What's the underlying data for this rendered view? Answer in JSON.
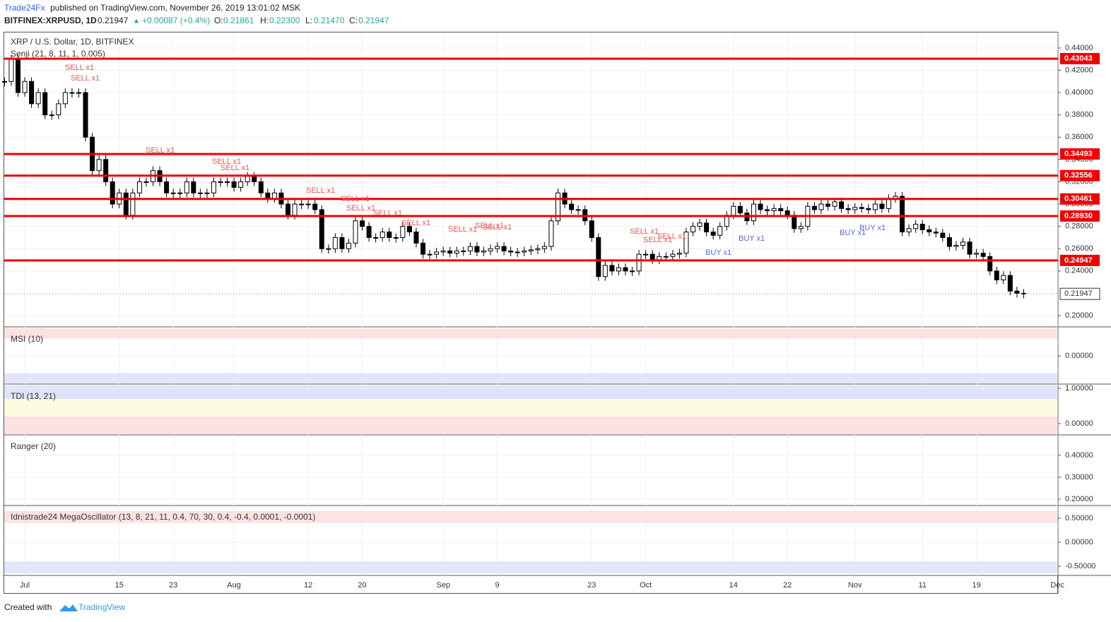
{
  "header": {
    "publisher": "Trade24Fx",
    "published": "published on TradingView.com, November 26, 2019 13:01:02 MSK",
    "symbol": "BITFINEX:XRPUSD, 1D",
    "last": "0.21947",
    "arrow": "▲",
    "change": "+0.00087 (+0.4%)",
    "open_label": "O:",
    "open": "0.21861",
    "high_label": "H:",
    "high": "0.22300",
    "low_label": "L:",
    "low": "0.21470",
    "close_label": "C:",
    "close": "0.21947"
  },
  "chart_data": {
    "type": "candlestick",
    "title": "XRP / U.S. Dollar, 1D, BITFINEX",
    "indicator": "Senji (21, 8, 11, 1, 0.005)",
    "categories": [
      null,
      null,
      null,
      "Jul",
      null,
      null,
      null,
      null,
      null,
      null,
      null,
      null,
      null,
      null,
      null,
      null,
      null,
      "15",
      null,
      null,
      null,
      null,
      null,
      null,
      null,
      "23",
      null,
      null,
      null,
      null,
      null,
      null,
      null,
      null,
      "Aug",
      null,
      null,
      null,
      null,
      null,
      null,
      null,
      null,
      null,
      null,
      "12",
      null,
      null,
      null,
      null,
      null,
      null,
      null,
      "20",
      null,
      null,
      null,
      null,
      null,
      null,
      null,
      null,
      null,
      null,
      null,
      "Sep",
      null,
      null,
      null,
      null,
      null,
      null,
      null,
      "9",
      null,
      null,
      null,
      null,
      null,
      null,
      null,
      null,
      null,
      null,
      null,
      null,
      null,
      "23",
      null,
      null,
      null,
      null,
      null,
      null,
      null,
      "Oct",
      null,
      null,
      null,
      null,
      null,
      null,
      null,
      null,
      null,
      null,
      null,
      null,
      "14",
      null,
      null,
      null,
      null,
      null,
      null,
      null,
      "22",
      null,
      null,
      null,
      null,
      null,
      null,
      null,
      null,
      null,
      "Nov",
      null,
      null,
      null,
      null,
      null,
      null,
      null,
      null,
      null,
      "11",
      null,
      null,
      null,
      null,
      null,
      null,
      null,
      "19",
      null,
      null,
      null,
      null,
      null,
      null,
      null,
      null,
      null,
      null,
      null,
      "Dec"
    ],
    "close": [
      0.41,
      0.43,
      0.4,
      0.41,
      0.39,
      0.4,
      0.38,
      0.38,
      0.39,
      0.4,
      0.4,
      0.4,
      0.36,
      0.33,
      0.34,
      0.32,
      0.3,
      0.31,
      0.29,
      0.31,
      0.32,
      0.32,
      0.33,
      0.32,
      0.31,
      0.31,
      0.31,
      0.32,
      0.31,
      0.31,
      0.31,
      0.32,
      0.32,
      0.32,
      0.315,
      0.32,
      0.325,
      0.32,
      0.31,
      0.305,
      0.31,
      0.3,
      0.29,
      0.3,
      0.3,
      0.3,
      0.295,
      0.26,
      0.26,
      0.27,
      0.26,
      0.265,
      0.285,
      0.28,
      0.27,
      0.27,
      0.275,
      0.27,
      0.27,
      0.28,
      0.275,
      0.265,
      0.255,
      0.255,
      0.257,
      0.258,
      0.256,
      0.258,
      0.258,
      0.262,
      0.257,
      0.258,
      0.26,
      0.262,
      0.258,
      0.257,
      0.257,
      0.258,
      0.259,
      0.26,
      0.262,
      0.285,
      0.31,
      0.3,
      0.295,
      0.295,
      0.285,
      0.27,
      0.235,
      0.245,
      0.24,
      0.243,
      0.24,
      0.24,
      0.255,
      0.255,
      0.25,
      0.253,
      0.253,
      0.255,
      0.256,
      0.275,
      0.28,
      0.283,
      0.275,
      0.272,
      0.28,
      0.29,
      0.298,
      0.292,
      0.285,
      0.3,
      0.295,
      0.294,
      0.296,
      0.294,
      0.29,
      0.278,
      0.28,
      0.298,
      0.295,
      0.3,
      0.298,
      0.302,
      0.296,
      0.295,
      0.297,
      0.296,
      0.295,
      0.3,
      0.296,
      0.305,
      0.307,
      0.275,
      0.278,
      0.282,
      0.277,
      0.275,
      0.274,
      0.27,
      0.262,
      0.263,
      0.266,
      0.255,
      0.256,
      0.253,
      0.24,
      0.232,
      0.236,
      0.222,
      0.22,
      0.21947,
      null,
      null,
      null,
      null,
      null
    ],
    "ylim": [
      0.1905,
      0.4539
    ],
    "yticks": [
      {
        "value": 0.44,
        "label": "0.44000"
      },
      {
        "value": 0.42,
        "label": "0.42000"
      },
      {
        "value": 0.4,
        "label": "0.40000"
      },
      {
        "value": 0.38,
        "label": "0.38000"
      },
      {
        "value": 0.36,
        "label": "0.36000"
      },
      {
        "value": 0.34,
        "label": "0.34000"
      },
      {
        "value": 0.32,
        "label": "0.32000"
      },
      {
        "value": 0.3,
        "label": "0.30000"
      },
      {
        "value": 0.28,
        "label": "0.28000"
      },
      {
        "value": 0.26,
        "label": "0.26000"
      },
      {
        "value": 0.24,
        "label": "0.24000"
      },
      {
        "value": 0.2,
        "label": "0.20000"
      }
    ],
    "levels": [
      {
        "value": 0.43043,
        "label": "0.43043"
      },
      {
        "value": 0.34493,
        "label": "0.34493"
      },
      {
        "value": 0.32556,
        "label": "0.32556"
      },
      {
        "value": 0.30461,
        "label": "0.30461"
      },
      {
        "value": 0.2893,
        "label": "0.28930"
      },
      {
        "value": 0.24947,
        "label": "0.24947"
      }
    ],
    "last_price": {
      "value": 0.21947,
      "label": "0.21947"
    },
    "level_color": "#f00000",
    "up_color": "#ffffff",
    "down_color": "#000000",
    "grid": true,
    "annotations": [
      "SELL x1",
      "SELL x1",
      "SELL x1",
      "SELL x1",
      "SELL x1",
      "SELL x1",
      "SELL x1",
      "SELL x1",
      "SELL x1",
      "SELL x1",
      "SELL x1",
      "SELL x1",
      "SELL x1",
      "SELL x1",
      "SELL x1",
      "SELL x1",
      "BUY x1",
      "BUY x1",
      "BUY x1",
      "BUY x1"
    ]
  },
  "panels": [
    {
      "title": "MSI (10)",
      "ylim": [
        -1.2,
        1.2
      ],
      "yticks": [
        {
          "value": 0,
          "label": "0.00000"
        }
      ]
    },
    {
      "title": "TDI (13, 21)",
      "ylim": [
        -0.3,
        1.08
      ],
      "yticks": [
        {
          "value": 1,
          "label": "1.00000"
        },
        {
          "value": 0,
          "label": "0.00000"
        }
      ]
    },
    {
      "title": "Ranger (20)",
      "ylim": [
        0.174,
        0.49
      ],
      "yticks": [
        {
          "value": 0.4,
          "label": "0.40000"
        },
        {
          "value": 0.3,
          "label": "0.30000"
        },
        {
          "value": 0.2,
          "label": "0.20000"
        }
      ]
    },
    {
      "title": "Idnistrade24 MegaOscillator (13, 8, 21, 11, 0.4, 70, 30, 0.4, -0.4, 0.0001, -0.0001)",
      "ylim": [
        -0.69,
        0.75
      ],
      "yticks": [
        {
          "value": 0.5,
          "label": "0.50000"
        },
        {
          "value": 0,
          "label": "0.00000"
        },
        {
          "value": -0.5,
          "label": "-0.50000"
        }
      ]
    }
  ],
  "footer": {
    "created": "Created with",
    "brand": "TradingView"
  }
}
